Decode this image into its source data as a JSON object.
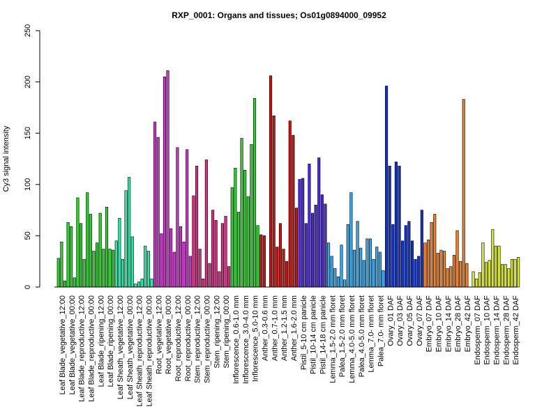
{
  "chart_data": {
    "type": "bar",
    "title": "RXP_0001: Organs and tissues; Os01g0894000_09952",
    "xlabel": "",
    "ylabel": "Cy3 signal intensity",
    "ylim": [
      0,
      250
    ],
    "yticks": [
      "0",
      "50",
      "100",
      "150",
      "200",
      "250"
    ],
    "grid": false,
    "legend": "none",
    "bar_color_groups": [
      "#33cc33",
      "#33e6a6",
      "#cc33cc",
      "#cc3380",
      "#e633a6",
      "#33cc33",
      "#cc1111",
      "#2255cc",
      "#4a2acc",
      "#3aa6e6",
      "#1133cc",
      "#e68033",
      "#d6e633"
    ],
    "categories": [
      "Leaf Blade_vegetative_12:00",
      "",
      "",
      "Leaf Blade_vegetative_00:00",
      "",
      "",
      "Leaf Blade_reproductive_12:00",
      "",
      "",
      "Leaf Blade_reproductive_00:00",
      "",
      "",
      "Leaf Blade_ripening_12:00",
      "",
      "",
      "Leaf Blade_ripening_00:00",
      "",
      "",
      "Leaf Sheath_vegetative_12:00",
      "",
      "",
      "Leaf Sheath_vegetative_00:00",
      "",
      "",
      "Leaf Sheath_reproductive_12:00",
      "",
      "",
      "Leaf Sheath_reproductive_00:00",
      "",
      "",
      "Root_vegetative_12:00",
      "",
      "",
      "Root_vegetative_00:00",
      "",
      "",
      "Root_reproductive_12:00",
      "",
      "",
      "Root_reproductive_00:00",
      "",
      "",
      "Stem_reproductive_12:00",
      "",
      "",
      "Stem_reproductive_00:00",
      "",
      "",
      "Stem_ripening_12:00",
      "",
      "",
      "Stem_ripening_00:00",
      "",
      "",
      "Inflorescence_0.6-1.0 mm",
      "",
      "",
      "Inflorescence_3.0-4.0 mm",
      "",
      "",
      "Inflorescence_5.0-10 mm",
      "",
      "",
      "Anther_0.3-0.6 mm",
      "",
      "",
      "Anther_0.7-1.0 mm",
      "",
      "",
      "Anther_1.2-1.5 mm",
      "",
      "",
      "Anther_1.6-2.0 mm",
      "",
      "",
      "Pistil_5-10 cm panicle",
      "",
      "",
      "Pistil_10-14 cm panicle",
      "",
      "",
      "Pistil_14-18 cm panicle",
      "",
      "",
      "Lemma_1.5-2.0 mm floret",
      "",
      "",
      "Palea_1.5-2.0 mm floret",
      "",
      "",
      "Lemma_4.0-5.0 mm floret",
      "",
      "",
      "Palea_4.0-5.0 mm floret",
      "",
      "",
      "Lemma_7.0- mm floret",
      "",
      "",
      "Palea_7.0- mm floret",
      "",
      "",
      "Ovary_01 DAF",
      "",
      "",
      "Ovary_03 DAF",
      "",
      "",
      "Ovary_05 DAF",
      "",
      "",
      "Ovary_07 DAF",
      "",
      "",
      "Embryo_07 DAF",
      "",
      "",
      "Embryo_10 DAF",
      "",
      "",
      "Embryo_14 DAF",
      "",
      "",
      "Embryo_28 DAF",
      "",
      "",
      "Embryo_42 DAF",
      "",
      "",
      "Endosperm_07 DAF",
      "",
      "",
      "Endosperm_10 DAF",
      "",
      "",
      "Endosperm_14 DAF",
      "",
      "",
      "Endosperm_28 DAF",
      "",
      "",
      "Endosperm_42 DAF",
      "",
      ""
    ],
    "values": [
      28,
      44,
      6,
      63,
      59,
      9,
      87,
      62,
      27,
      92,
      71,
      35,
      43,
      72,
      37,
      78,
      37,
      36,
      45,
      67,
      27,
      94,
      107,
      49,
      3,
      5,
      8,
      40,
      35,
      8,
      161,
      146,
      52,
      205,
      211,
      57,
      34,
      136,
      59,
      44,
      134,
      30,
      89,
      118,
      37,
      8,
      124,
      23,
      75,
      65,
      15,
      62,
      69,
      20,
      97,
      116,
      73,
      145,
      114,
      88,
      139,
      184,
      60,
      51,
      50,
      0,
      206,
      167,
      39,
      62,
      37,
      25,
      162,
      148,
      77,
      105,
      106,
      62,
      120,
      72,
      80,
      126,
      90,
      81,
      43,
      30,
      18,
      10,
      41,
      7,
      61,
      92,
      36,
      64,
      38,
      26,
      47,
      47,
      27,
      39,
      34,
      16,
      196,
      118,
      61,
      122,
      118,
      45,
      60,
      64,
      45,
      27,
      30,
      75,
      43,
      46,
      63,
      71,
      33,
      36,
      35,
      18,
      20,
      31,
      55,
      25,
      183,
      23,
      0,
      15,
      8,
      14,
      43,
      24,
      26,
      56,
      40,
      40,
      22,
      22,
      18,
      27,
      27,
      29
    ]
  }
}
